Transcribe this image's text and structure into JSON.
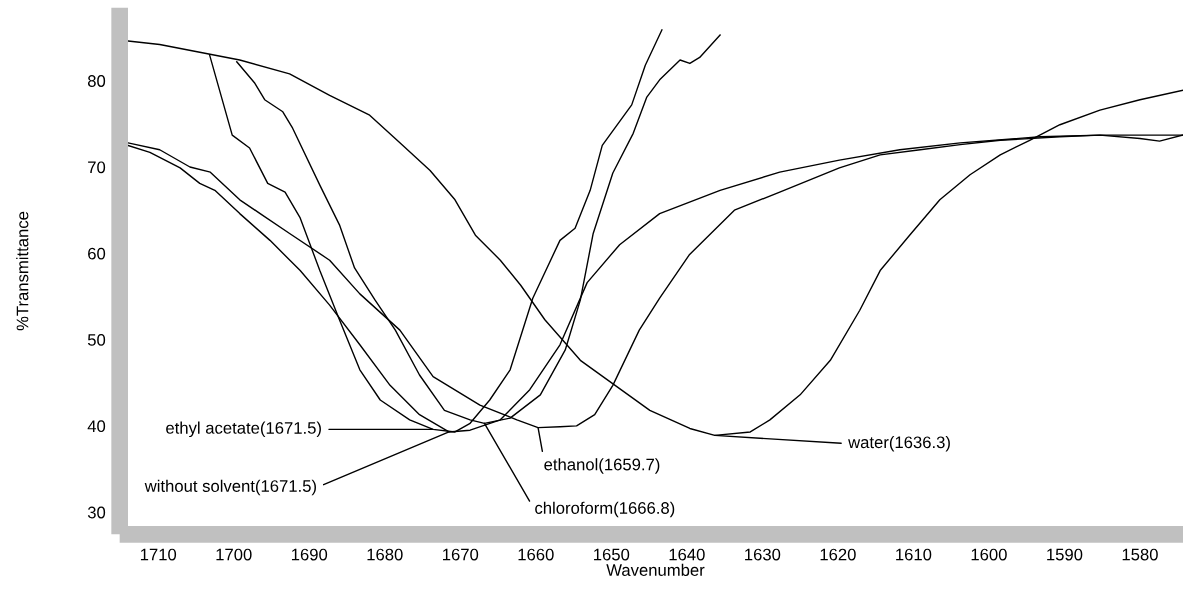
{
  "chart_data": {
    "type": "line",
    "xlabel": "Wavenumber",
    "ylabel": "%Transmittance",
    "xlim": [
      1714.0,
      1574.3
    ],
    "ylim": [
      28.4,
      87.5
    ],
    "xticks": [
      1710,
      1700,
      1690,
      1680,
      1670,
      1660,
      1650,
      1640,
      1630,
      1620,
      1610,
      1600,
      1590,
      1580
    ],
    "yticks": [
      30,
      40,
      50,
      60,
      70,
      80
    ],
    "grid": false,
    "series": [
      {
        "color": "#000000",
        "x": [
          1714.0,
          1709.8,
          1704.5,
          1699.2,
          1692.6,
          1687.3,
          1682.0,
          1678.0,
          1674.0,
          1670.7,
          1668.0,
          1664.7,
          1662.0,
          1658.8,
          1654.1,
          1649.5,
          1644.9,
          1639.6,
          1636.3,
          1631.6,
          1629.0,
          1625.0,
          1621.0,
          1617.1,
          1614.4,
          1610.5,
          1606.5,
          1602.5,
          1598.5,
          1594.6,
          1590.6,
          1585.3,
          1580.0,
          1574.3
        ],
        "values": [
          84.6,
          84.2,
          83.3,
          82.4,
          80.8,
          78.3,
          76.0,
          72.8,
          69.6,
          66.2,
          62.1,
          59.2,
          56.3,
          52.3,
          47.6,
          44.7,
          41.8,
          39.7,
          38.9,
          39.3,
          40.7,
          43.6,
          47.6,
          53.4,
          58.0,
          62.1,
          66.2,
          69.1,
          71.4,
          73.1,
          74.9,
          76.6,
          77.8,
          78.9
        ]
      },
      {
        "color": "#000000",
        "x": [
          1714.0,
          1709.8,
          1705.8,
          1703.1,
          1699.2,
          1696.5,
          1692.6,
          1687.3,
          1683.3,
          1678.0,
          1673.6,
          1667.4,
          1662.5,
          1659.7,
          1656.8,
          1654.6,
          1652.2,
          1649.8,
          1646.3,
          1643.6,
          1639.7,
          1633.7,
          1627.7,
          1619.8,
          1614.4,
          1609.1,
          1603.8,
          1598.5,
          1590.6,
          1585.3,
          1580.0,
          1577.4,
          1574.3
        ],
        "values": [
          72.8,
          72.0,
          70.0,
          69.4,
          66.2,
          64.6,
          62.3,
          59.2,
          55.3,
          51.1,
          45.7,
          42.4,
          40.7,
          39.8,
          39.9,
          40.0,
          41.3,
          44.7,
          51.1,
          54.8,
          59.8,
          65.0,
          67.1,
          69.9,
          71.4,
          72.0,
          72.6,
          73.1,
          73.5,
          73.7,
          73.3,
          73.0,
          73.7
        ]
      },
      {
        "color": "#000000",
        "x": [
          1714.0,
          1711.1,
          1707.1,
          1704.5,
          1702.5,
          1699.2,
          1695.2,
          1691.2,
          1687.3,
          1683.3,
          1679.3,
          1675.4,
          1671.5,
          1668.7,
          1664.7,
          1660.8,
          1656.8,
          1653.2,
          1648.9,
          1643.6,
          1635.6,
          1627.7,
          1619.8,
          1611.8,
          1603.8,
          1593.2,
          1585.3,
          1574.3
        ],
        "values": [
          72.5,
          71.7,
          69.9,
          68.1,
          67.3,
          64.6,
          61.5,
          58.0,
          54.0,
          49.4,
          44.7,
          41.3,
          39.3,
          39.5,
          40.7,
          44.2,
          49.4,
          56.6,
          61.0,
          64.6,
          67.3,
          69.4,
          70.8,
          72.0,
          72.8,
          73.5,
          73.7,
          73.7
        ]
      },
      {
        "color": "#000000",
        "x": [
          1703.2,
          1700.2,
          1697.9,
          1695.5,
          1693.2,
          1691.2,
          1688.6,
          1686.0,
          1683.3,
          1680.6,
          1676.7,
          1673.6,
          1670.7,
          1668.7,
          1666.1,
          1663.4,
          1660.4,
          1656.8,
          1654.8,
          1652.8,
          1651.2,
          1647.3,
          1645.5,
          1643.3
        ],
        "values": [
          83.0,
          73.7,
          72.2,
          68.1,
          67.1,
          64.1,
          58.0,
          52.3,
          46.5,
          43.0,
          40.7,
          39.6,
          39.3,
          40.3,
          43.0,
          46.5,
          54.8,
          61.5,
          62.9,
          67.3,
          72.5,
          77.2,
          81.8,
          85.9
        ]
      },
      {
        "color": "#000000",
        "x": [
          1699.6,
          1697.2,
          1695.9,
          1693.5,
          1692.2,
          1688.6,
          1686.0,
          1684.0,
          1681.3,
          1678.6,
          1675.4,
          1672.1,
          1668.7,
          1666.8,
          1663.4,
          1659.4,
          1656.1,
          1654.1,
          1652.4,
          1649.8,
          1647.1,
          1645.3,
          1643.6,
          1640.9,
          1639.6,
          1638.3,
          1635.6
        ],
        "values": [
          82.2,
          79.7,
          77.8,
          76.4,
          74.5,
          67.9,
          63.3,
          58.3,
          54.6,
          51.1,
          45.9,
          41.8,
          40.7,
          40.3,
          40.9,
          43.6,
          48.8,
          54.6,
          62.3,
          69.3,
          73.9,
          78.1,
          80.1,
          82.4,
          82.0,
          82.7,
          85.3
        ]
      }
    ],
    "annotations": [
      {
        "text": "ethyl acetate(1671.5)",
        "x": 1673.6,
        "y": 39.6
      },
      {
        "text": "without solvent(1671.5)",
        "x": 1671.5,
        "y": 39.3
      },
      {
        "text": "chloroform(1666.8)",
        "x": 1666.8,
        "y": 40.3
      },
      {
        "text": "ethanol(1659.7)",
        "x": 1659.7,
        "y": 39.8
      },
      {
        "text": "water(1636.3)",
        "x": 1636.3,
        "y": 38.9
      }
    ]
  }
}
